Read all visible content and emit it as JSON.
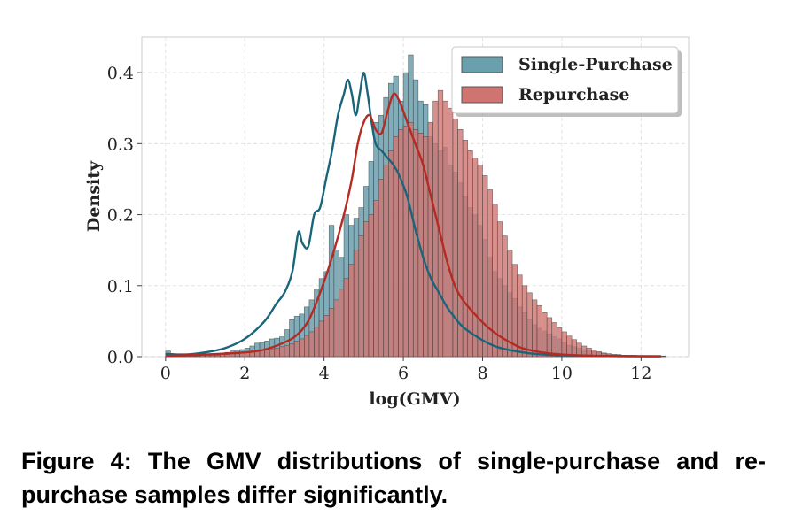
{
  "chart_data": {
    "type": "histogram",
    "xlabel": "log(GMV)",
    "ylabel": "Density",
    "xlim": [
      -0.6,
      13.2
    ],
    "ylim": [
      0,
      0.45
    ],
    "xticks": [
      0,
      2,
      4,
      6,
      8,
      10,
      12
    ],
    "xtick_labels": [
      "0",
      "2",
      "4",
      "6",
      "8",
      "10",
      "12"
    ],
    "yticks": [
      0,
      0.1,
      0.2,
      0.3,
      0.4
    ],
    "ytick_labels": [
      "0.0",
      "0.1",
      "0.2",
      "0.3",
      "0.4"
    ],
    "grid": true,
    "legend_position": "top-right",
    "bin_start": 0,
    "bin_width": 0.125,
    "series": [
      {
        "name": "Single-Purchase",
        "fill": "#6a9fad",
        "line": "#19657a",
        "hist": [
          0.008,
          0.004,
          0.003,
          0.003,
          0.002,
          0.002,
          0.002,
          0.003,
          0.003,
          0.003,
          0.004,
          0.004,
          0.006,
          0.008,
          0.008,
          0.01,
          0.012,
          0.015,
          0.019,
          0.02,
          0.022,
          0.025,
          0.026,
          0.028,
          0.038,
          0.052,
          0.057,
          0.06,
          0.07,
          0.08,
          0.095,
          0.11,
          0.12,
          0.185,
          0.15,
          0.14,
          0.2,
          0.185,
          0.195,
          0.21,
          0.24,
          0.275,
          0.33,
          0.34,
          0.365,
          0.385,
          0.395,
          0.36,
          0.4,
          0.425,
          0.39,
          0.36,
          0.355,
          0.31,
          0.3,
          0.29,
          0.295,
          0.27,
          0.26,
          0.245,
          0.225,
          0.21,
          0.2,
          0.185,
          0.165,
          0.14,
          0.12,
          0.11,
          0.1,
          0.09,
          0.082,
          0.07,
          0.062,
          0.052,
          0.045,
          0.04,
          0.036,
          0.032,
          0.028,
          0.025,
          0.02,
          0.016,
          0.014,
          0.012,
          0.01,
          0.009,
          0.007,
          0.006,
          0.005,
          0.004,
          0.003,
          0.003,
          0.002,
          0.002,
          0.002,
          0.001,
          0.001,
          0.001,
          0.001,
          0.001,
          0.001
        ],
        "kde": [
          [
            0,
            0.004
          ],
          [
            0.5,
            0.003
          ],
          [
            1,
            0.006
          ],
          [
            1.5,
            0.012
          ],
          [
            2,
            0.025
          ],
          [
            2.5,
            0.05
          ],
          [
            2.8,
            0.075
          ],
          [
            3,
            0.09
          ],
          [
            3.2,
            0.12
          ],
          [
            3.35,
            0.175
          ],
          [
            3.45,
            0.16
          ],
          [
            3.6,
            0.155
          ],
          [
            3.75,
            0.2
          ],
          [
            3.9,
            0.21
          ],
          [
            4.05,
            0.25
          ],
          [
            4.2,
            0.29
          ],
          [
            4.35,
            0.34
          ],
          [
            4.5,
            0.37
          ],
          [
            4.6,
            0.39
          ],
          [
            4.7,
            0.37
          ],
          [
            4.8,
            0.34
          ],
          [
            4.9,
            0.37
          ],
          [
            5.0,
            0.4
          ],
          [
            5.1,
            0.37
          ],
          [
            5.2,
            0.33
          ],
          [
            5.3,
            0.3
          ],
          [
            5.45,
            0.29
          ],
          [
            5.6,
            0.28
          ],
          [
            5.75,
            0.27
          ],
          [
            5.9,
            0.255
          ],
          [
            6.1,
            0.225
          ],
          [
            6.3,
            0.18
          ],
          [
            6.5,
            0.14
          ],
          [
            6.7,
            0.11
          ],
          [
            6.9,
            0.09
          ],
          [
            7.1,
            0.07
          ],
          [
            7.3,
            0.055
          ],
          [
            7.5,
            0.042
          ],
          [
            7.8,
            0.03
          ],
          [
            8.1,
            0.02
          ],
          [
            8.4,
            0.013
          ],
          [
            8.8,
            0.008
          ],
          [
            9.3,
            0.004
          ],
          [
            10,
            0.002
          ],
          [
            11,
            0.001
          ],
          [
            12.5,
            0.0005
          ]
        ]
      },
      {
        "name": "Repurchase",
        "fill": "#cf7470",
        "line": "#b52a22",
        "hist": [
          0.003,
          0.002,
          0.001,
          0.001,
          0.001,
          0.001,
          0.001,
          0.002,
          0.002,
          0.002,
          0.002,
          0.003,
          0.003,
          0.004,
          0.004,
          0.005,
          0.006,
          0.007,
          0.008,
          0.009,
          0.01,
          0.011,
          0.012,
          0.014,
          0.016,
          0.018,
          0.022,
          0.025,
          0.03,
          0.035,
          0.042,
          0.05,
          0.058,
          0.068,
          0.08,
          0.095,
          0.11,
          0.13,
          0.15,
          0.17,
          0.19,
          0.2,
          0.22,
          0.25,
          0.27,
          0.29,
          0.31,
          0.32,
          0.325,
          0.33,
          0.32,
          0.315,
          0.31,
          0.33,
          0.36,
          0.375,
          0.36,
          0.35,
          0.335,
          0.32,
          0.305,
          0.29,
          0.28,
          0.27,
          0.255,
          0.235,
          0.215,
          0.19,
          0.17,
          0.15,
          0.13,
          0.115,
          0.1,
          0.09,
          0.08,
          0.072,
          0.062,
          0.055,
          0.048,
          0.041,
          0.035,
          0.029,
          0.024,
          0.019,
          0.015,
          0.012,
          0.009,
          0.007,
          0.005,
          0.004,
          0.003,
          0.002,
          0.002,
          0.001,
          0.001,
          0.001,
          0.001,
          0.001,
          0.0005,
          0.0005,
          0.0005
        ],
        "kde": [
          [
            0,
            0.001
          ],
          [
            1,
            0.003
          ],
          [
            2,
            0.006
          ],
          [
            2.5,
            0.01
          ],
          [
            3,
            0.02
          ],
          [
            3.3,
            0.03
          ],
          [
            3.6,
            0.05
          ],
          [
            3.9,
            0.09
          ],
          [
            4.2,
            0.14
          ],
          [
            4.5,
            0.2
          ],
          [
            4.7,
            0.25
          ],
          [
            4.85,
            0.3
          ],
          [
            5.0,
            0.33
          ],
          [
            5.15,
            0.34
          ],
          [
            5.3,
            0.32
          ],
          [
            5.45,
            0.315
          ],
          [
            5.6,
            0.345
          ],
          [
            5.75,
            0.37
          ],
          [
            5.9,
            0.36
          ],
          [
            6.1,
            0.33
          ],
          [
            6.3,
            0.3
          ],
          [
            6.5,
            0.27
          ],
          [
            6.7,
            0.225
          ],
          [
            6.9,
            0.18
          ],
          [
            7.1,
            0.135
          ],
          [
            7.3,
            0.1
          ],
          [
            7.5,
            0.08
          ],
          [
            7.8,
            0.06
          ],
          [
            8.1,
            0.043
          ],
          [
            8.4,
            0.03
          ],
          [
            8.7,
            0.02
          ],
          [
            9.0,
            0.012
          ],
          [
            9.5,
            0.006
          ],
          [
            10,
            0.003
          ],
          [
            11,
            0.001
          ],
          [
            12.5,
            0.0005
          ]
        ]
      }
    ]
  },
  "caption": "Figure 4: The GMV distributions of single-purchase and re-purchase samples differ significantly."
}
